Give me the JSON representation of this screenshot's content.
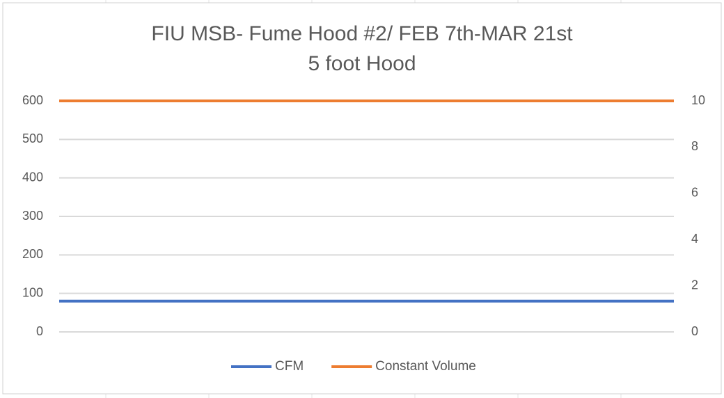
{
  "chart_data": {
    "type": "line",
    "title": "FIU MSB- Fume Hood #2/ FEB 7th-MAR 21st",
    "subtitle": "5 foot Hood",
    "categories": [
      null,
      null
    ],
    "series": [
      {
        "name": "CFM",
        "color": "#4472c4",
        "values": [
          80,
          80
        ]
      },
      {
        "name": "Constant Volume",
        "color": "#ed7d31",
        "values": [
          10,
          10
        ],
        "axis": "y2"
      }
    ],
    "ylim": [
      0,
      600
    ],
    "yticks": [
      0,
      100,
      200,
      300,
      400,
      500,
      600
    ],
    "y2lim": [
      0,
      10
    ],
    "y2ticks": [
      0,
      2,
      4,
      6,
      8,
      10
    ],
    "grid": true,
    "legend": "bottom"
  }
}
